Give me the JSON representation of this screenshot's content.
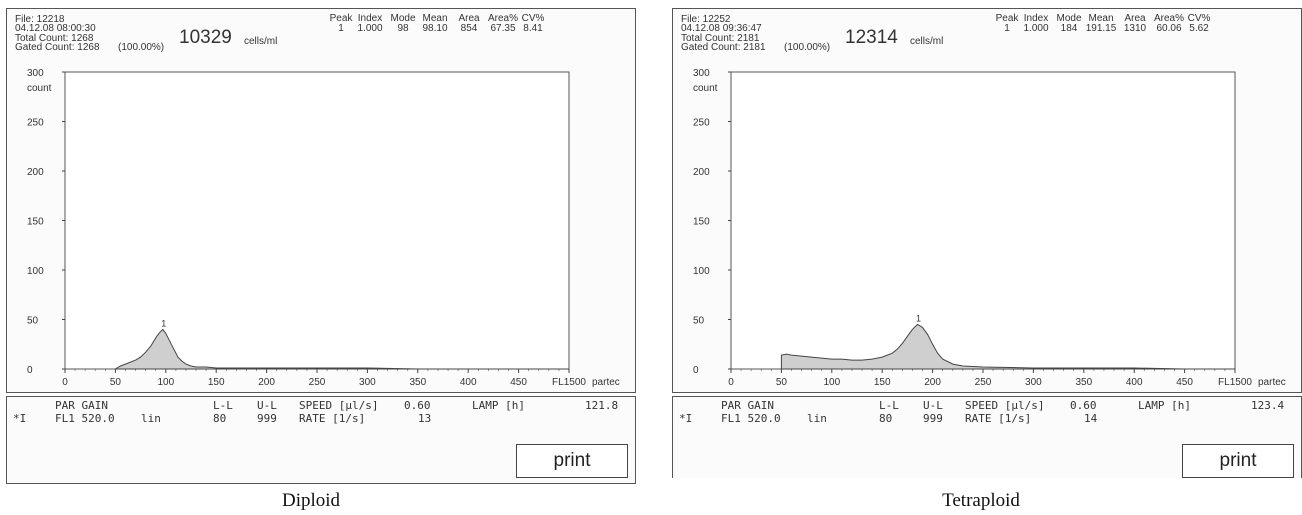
{
  "panels": [
    {
      "file": "File: 12218",
      "datetime": "04.12.08 08:00:30",
      "total_count": "Total Count: 1268",
      "gated_count": "Gated Count: 1268",
      "gated_pct": "(100.00%)",
      "concentration": "10329",
      "concentration_unit": "cells/ml",
      "stats": {
        "headers": [
          "Peak",
          "Index",
          "Mode",
          "Mean",
          "Area",
          "Area%",
          "CV%"
        ],
        "values": [
          "1",
          "1.000",
          "98",
          "98.10",
          "854",
          "67.35",
          "8.41"
        ]
      },
      "bottom": {
        "row1": {
          "par_gain": "PAR GAIN",
          "ll": "L-L",
          "ul": "U-L",
          "speed": "SPEED [µl/s]",
          "speed_val": "0.60",
          "lamp": "LAMP [h]",
          "lamp_val": "121.8"
        },
        "row2": {
          "marker": "*I",
          "par": "FL1 520.0",
          "mode": "lin",
          "ll": "80",
          "ul": "999",
          "rate": "RATE [1/s]",
          "rate_val": "13"
        }
      },
      "print_label": "print",
      "brand": "partec",
      "caption": "Diploid"
    },
    {
      "file": "File: 12252",
      "datetime": "04.12.08 09:36:47",
      "total_count": "Total Count: 2181",
      "gated_count": "Gated Count: 2181",
      "gated_pct": "(100.00%)",
      "concentration": "12314",
      "concentration_unit": "cells/ml",
      "stats": {
        "headers": [
          "Peak",
          "Index",
          "Mode",
          "Mean",
          "Area",
          "Area%",
          "CV%"
        ],
        "values": [
          "1",
          "1.000",
          "184",
          "191.15",
          "1310",
          "60.06",
          "5.62"
        ]
      },
      "bottom": {
        "row1": {
          "par_gain": "PAR GAIN",
          "ll": "L-L",
          "ul": "U-L",
          "speed": "SPEED [µl/s]",
          "speed_val": "0.60",
          "lamp": "LAMP [h]",
          "lamp_val": "123.4"
        },
        "row2": {
          "marker": "*I",
          "par": "FL1 520.0",
          "mode": "lin",
          "ll": "80",
          "ul": "999",
          "rate": "RATE [1/s]",
          "rate_val": "14"
        }
      },
      "print_label": "print",
      "brand": "partec",
      "caption": "Tetraploid"
    }
  ],
  "chart_data": [
    {
      "type": "area",
      "xlabel": "FL1",
      "ylabel": "count",
      "xlim": [
        0,
        500
      ],
      "ylim": [
        0,
        300
      ],
      "x_ticks": [
        0,
        50,
        100,
        150,
        200,
        250,
        300,
        350,
        400,
        450,
        500
      ],
      "x_tick_labels": [
        "0",
        "50",
        "100",
        "150",
        "200",
        "250",
        "300",
        "350",
        "400",
        "450",
        "FL1500"
      ],
      "y_ticks": [
        0,
        50,
        100,
        150,
        200,
        250,
        300
      ],
      "y_tick_labels": [
        "0",
        "50",
        "100",
        "150",
        "200",
        "250",
        "300"
      ],
      "peak_label": {
        "text": "1",
        "x": 98,
        "y": 40
      },
      "x": [
        50,
        55,
        60,
        65,
        70,
        75,
        80,
        85,
        88,
        91,
        94,
        97,
        100,
        103,
        106,
        109,
        112,
        116,
        120,
        125,
        130,
        140,
        150,
        175,
        200,
        250,
        300,
        350,
        400,
        450,
        500
      ],
      "values": [
        0,
        3,
        5,
        7,
        9,
        12,
        17,
        23,
        28,
        33,
        37,
        40,
        36,
        30,
        24,
        18,
        12,
        8,
        5,
        3,
        2,
        2,
        1,
        1,
        1,
        1,
        1,
        0,
        0,
        0,
        0
      ]
    },
    {
      "type": "area",
      "xlabel": "FL1",
      "ylabel": "count",
      "xlim": [
        0,
        500
      ],
      "ylim": [
        0,
        300
      ],
      "x_ticks": [
        0,
        50,
        100,
        150,
        200,
        250,
        300,
        350,
        400,
        450,
        500
      ],
      "x_tick_labels": [
        "0",
        "50",
        "100",
        "150",
        "200",
        "250",
        "300",
        "350",
        "400",
        "450",
        "FL1500"
      ],
      "y_ticks": [
        0,
        50,
        100,
        150,
        200,
        250,
        300
      ],
      "y_tick_labels": [
        "0",
        "50",
        "100",
        "150",
        "200",
        "250",
        "300"
      ],
      "peak_label": {
        "text": "1",
        "x": 186,
        "y": 45
      },
      "x": [
        50,
        55,
        60,
        70,
        80,
        90,
        100,
        110,
        120,
        130,
        140,
        150,
        160,
        165,
        170,
        175,
        180,
        185,
        190,
        195,
        200,
        205,
        210,
        220,
        230,
        250,
        300,
        350,
        400,
        450,
        500
      ],
      "values": [
        14,
        15,
        14,
        13,
        12,
        11,
        10,
        10,
        9,
        9,
        10,
        12,
        16,
        20,
        26,
        33,
        40,
        45,
        42,
        35,
        25,
        16,
        10,
        5,
        3,
        2,
        1,
        1,
        1,
        0,
        0
      ]
    }
  ]
}
